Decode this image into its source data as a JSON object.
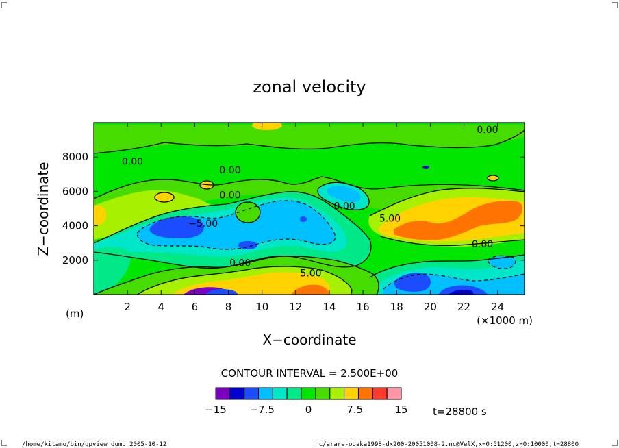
{
  "chart_data": {
    "type": "heatmap",
    "title": "zonal velocity",
    "xlabel": "X−coordinate",
    "ylabel": "Z−coordinate",
    "x_units_label": "(×1000 m)",
    "y_units_label": "(m)",
    "xlim": [
      0,
      25.6
    ],
    "ylim": [
      0,
      10000
    ],
    "x_ticks": [
      2,
      4,
      6,
      8,
      10,
      12,
      14,
      16,
      18,
      20,
      22,
      24
    ],
    "y_ticks": [
      2000,
      4000,
      6000,
      8000
    ],
    "contour_interval_label": "CONTOUR INTERVAL = 2.500E+00",
    "contour_labels": [
      {
        "text": "0.00",
        "x": 2.3,
        "y": 7750
      },
      {
        "text": "0.00",
        "x": 8.1,
        "y": 7250
      },
      {
        "text": "0.00",
        "x": 8.1,
        "y": 5800
      },
      {
        "text": "0.00",
        "x": 14.9,
        "y": 5150
      },
      {
        "text": "0.00",
        "x": 23.4,
        "y": 9600
      },
      {
        "text": "0.00",
        "x": 23.1,
        "y": 2950
      },
      {
        "text": "0.00",
        "x": 8.7,
        "y": 1850
      },
      {
        "text": "−5.00",
        "x": 6.5,
        "y": 4150
      },
      {
        "text": "5.00",
        "x": 17.6,
        "y": 4450
      },
      {
        "text": "5.00",
        "x": 12.9,
        "y": 1250
      }
    ],
    "colorbar": {
      "levels": [
        -15,
        -12.5,
        -10,
        -7.5,
        -5,
        -2.5,
        0,
        2.5,
        5,
        7.5,
        10,
        12.5,
        15
      ],
      "colors": [
        "#7a00c2",
        "#0000cf",
        "#1b4dff",
        "#00bfff",
        "#00e6c8",
        "#00e887",
        "#00e600",
        "#46dc00",
        "#a6f000",
        "#ffd200",
        "#ff7400",
        "#ff3a2a",
        "#ff96a6"
      ],
      "tick_labels": [
        "−15",
        "−7.5",
        "0",
        "7.5",
        "15"
      ],
      "tick_values": [
        -15,
        -7.5,
        0,
        7.5,
        15
      ]
    },
    "time_label": "t=28800 s",
    "grid": false
  },
  "footer": {
    "left": "/home/kitamo/bin/gpview_dump  2005-10-12",
    "right": "nc/arare-odaka1998-dx200-20051008-2.nc@VelX,x=0:51200,z=0:10000,t=28800"
  }
}
